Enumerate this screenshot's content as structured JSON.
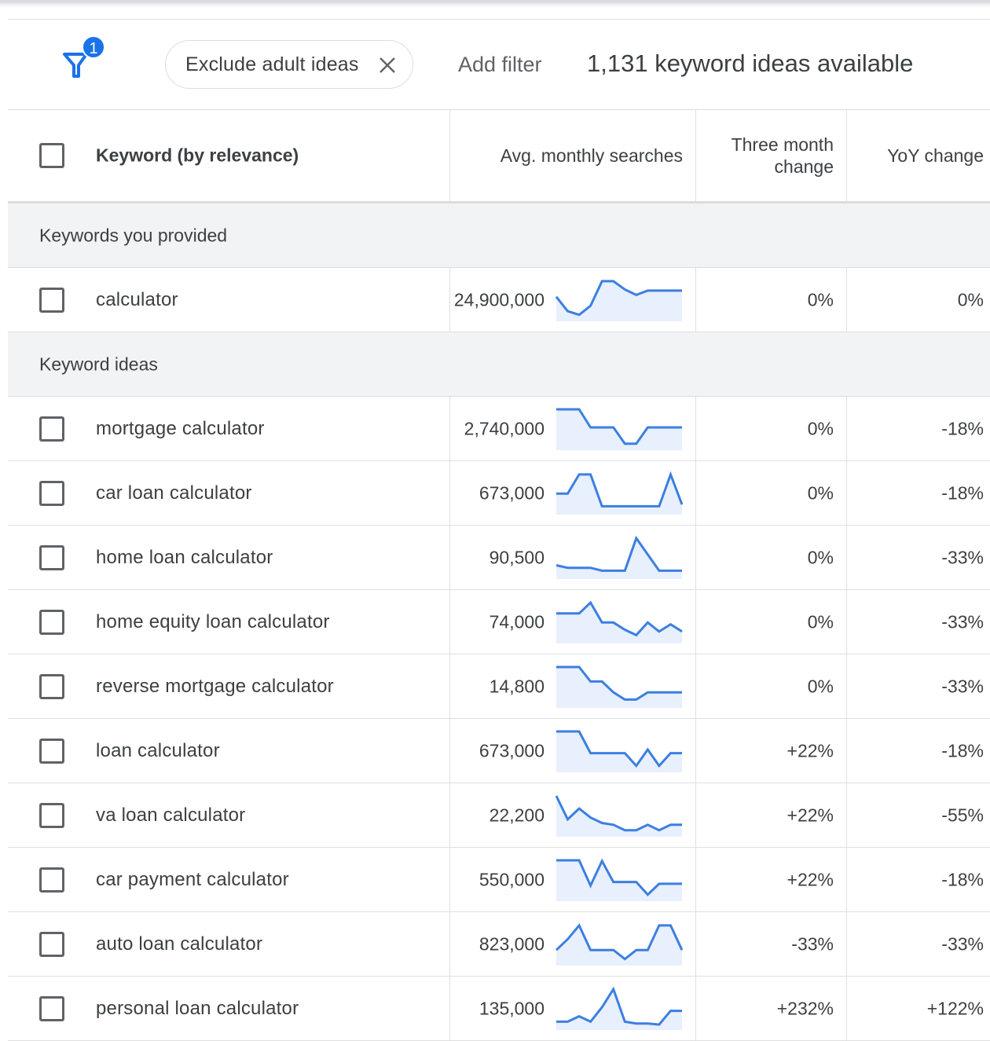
{
  "filter_bar": {
    "badge": "1",
    "chip_label": "Exclude adult ideas",
    "add_filter": "Add filter",
    "ideas_available": "1,131 keyword ideas available"
  },
  "table": {
    "headers": {
      "keyword": "Keyword (by relevance)",
      "avg": "Avg. monthly searches",
      "three_month_line1": "Three month",
      "three_month_line2": "change",
      "yoy": "YoY change"
    },
    "sections": {
      "provided": "Keywords you provided",
      "ideas": "Keyword ideas"
    },
    "provided_rows": [
      {
        "keyword": "calculator",
        "avg": "24,900,000",
        "three_month": "0%",
        "yoy": "0%",
        "trend": [
          0.55,
          0.15,
          0.05,
          0.3,
          0.98,
          0.98,
          0.75,
          0.6,
          0.72,
          0.72,
          0.72,
          0.72
        ]
      }
    ],
    "idea_rows": [
      {
        "keyword": "mortgage calculator",
        "avg": "2,740,000",
        "three_month": "0%",
        "yoy": "-18%",
        "trend": [
          1.0,
          1.0,
          1.0,
          0.5,
          0.5,
          0.5,
          0.05,
          0.05,
          0.5,
          0.5,
          0.5,
          0.5
        ]
      },
      {
        "keyword": "car loan calculator",
        "avg": "673,000",
        "three_month": "0%",
        "yoy": "-18%",
        "trend": [
          0.45,
          0.45,
          0.98,
          0.98,
          0.1,
          0.1,
          0.1,
          0.1,
          0.1,
          0.1,
          0.98,
          0.15
        ]
      },
      {
        "keyword": "home loan calculator",
        "avg": "90,500",
        "three_month": "0%",
        "yoy": "-33%",
        "trend": [
          0.25,
          0.18,
          0.18,
          0.18,
          0.1,
          0.1,
          0.1,
          1.0,
          0.55,
          0.1,
          0.1,
          0.1
        ]
      },
      {
        "keyword": "home equity loan calculator",
        "avg": "74,000",
        "three_month": "0%",
        "yoy": "-33%",
        "trend": [
          0.7,
          0.7,
          0.7,
          1.0,
          0.45,
          0.45,
          0.25,
          0.1,
          0.45,
          0.2,
          0.4,
          0.2
        ]
      },
      {
        "keyword": "reverse mortgage calculator",
        "avg": "14,800",
        "three_month": "0%",
        "yoy": "-33%",
        "trend": [
          1.0,
          1.0,
          1.0,
          0.6,
          0.6,
          0.3,
          0.1,
          0.1,
          0.3,
          0.3,
          0.3,
          0.3
        ]
      },
      {
        "keyword": "loan calculator",
        "avg": "673,000",
        "three_month": "+22%",
        "yoy": "-18%",
        "trend": [
          1.0,
          1.0,
          1.0,
          0.4,
          0.4,
          0.4,
          0.4,
          0.05,
          0.5,
          0.05,
          0.4,
          0.4
        ]
      },
      {
        "keyword": "va loan calculator",
        "avg": "22,200",
        "three_month": "+22%",
        "yoy": "-55%",
        "trend": [
          1.0,
          0.35,
          0.65,
          0.4,
          0.25,
          0.2,
          0.05,
          0.05,
          0.2,
          0.05,
          0.2,
          0.2
        ]
      },
      {
        "keyword": "car payment calculator",
        "avg": "550,000",
        "three_month": "+22%",
        "yoy": "-18%",
        "trend": [
          1.0,
          1.0,
          1.0,
          0.3,
          0.98,
          0.4,
          0.4,
          0.4,
          0.05,
          0.35,
          0.35,
          0.35
        ]
      },
      {
        "keyword": "auto loan calculator",
        "avg": "823,000",
        "three_month": "-33%",
        "yoy": "-33%",
        "trend": [
          0.3,
          0.6,
          0.98,
          0.3,
          0.3,
          0.3,
          0.05,
          0.3,
          0.3,
          0.98,
          0.98,
          0.3
        ]
      },
      {
        "keyword": "personal loan calculator",
        "avg": "135,000",
        "three_month": "+232%",
        "yoy": "+122%",
        "trend": [
          0.1,
          0.1,
          0.25,
          0.1,
          0.5,
          1.0,
          0.1,
          0.05,
          0.05,
          0.02,
          0.4,
          0.4
        ]
      }
    ]
  },
  "colors": {
    "accent": "#1a73e8",
    "spark_line": "#3c7fe0",
    "spark_fill": "#e8effd",
    "section_bg": "#f1f3f4"
  }
}
